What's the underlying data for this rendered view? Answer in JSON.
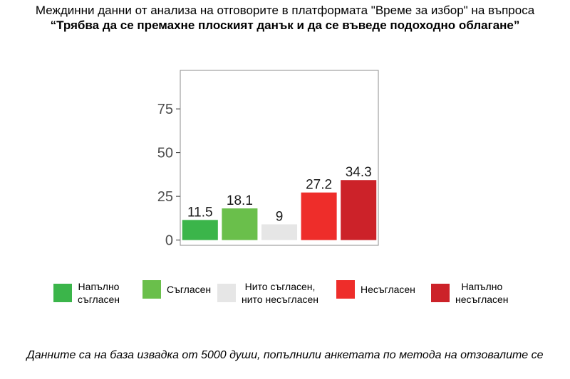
{
  "title_line1": "Междинни данни от анализа на отговорите в платформата \"Време за избор\" на въпроса",
  "title_line2": "“Трябва да се премахне плоският данък и да се въведе подоходно облагане”",
  "chart_data": {
    "type": "bar",
    "categories": [
      "Напълно съгласен",
      "Съгласен",
      "Нито съгласен, нито несъгласен",
      "Несъгласен",
      "Напълно несъгласен"
    ],
    "values": [
      11.5,
      18.1,
      9,
      27.2,
      34.3
    ],
    "value_labels": [
      "11.5",
      "18.1",
      "9",
      "27.2",
      "34.3"
    ],
    "colors": [
      "#3bb54a",
      "#6abf4b",
      "#e6e6e6",
      "#ee2d2a",
      "#cc2229"
    ],
    "yticks": [
      0,
      25,
      50,
      75
    ],
    "ytick_labels": [
      "0",
      "25",
      "50",
      "75"
    ],
    "ylim": [
      -3,
      97
    ],
    "grid": false,
    "legend_position": "bottom"
  },
  "legend": [
    {
      "line1": "Напълно",
      "line2": "съгласен",
      "color": "#3bb54a"
    },
    {
      "line1": "Съгласен",
      "line2": "",
      "color": "#6abf4b"
    },
    {
      "line1": "Нито съгласен,",
      "line2": "нито несъгласен",
      "color": "#e6e6e6"
    },
    {
      "line1": "Несъгласен",
      "line2": "",
      "color": "#ee2d2a"
    },
    {
      "line1": "Напълно",
      "line2": "несъгласен",
      "color": "#cc2229"
    }
  ],
  "footnote": "Данните са на база извадка от 5000 души, попълнили анкетата по метода на отзовалите се"
}
